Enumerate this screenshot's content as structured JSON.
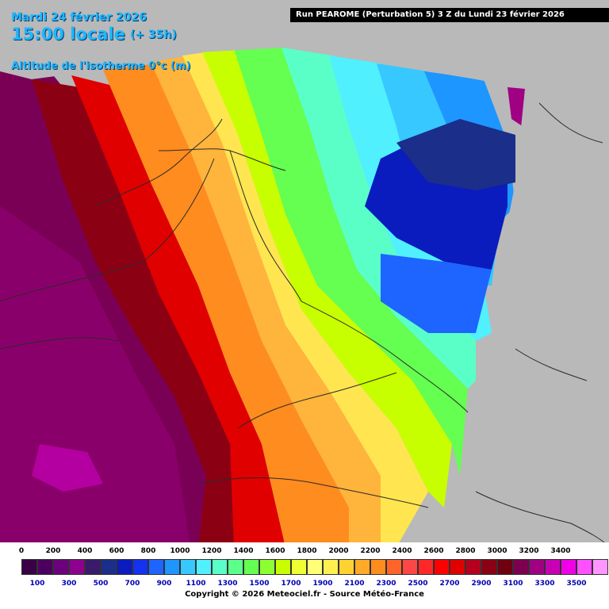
{
  "header": {
    "date": "Mardi 24 février 2026",
    "time": "15:00 locale",
    "offset": "(+ 35h)",
    "parameter": "Altitude de l'isotherme 0°c (m)",
    "run": "Run PEAROME (Perturbation 5) 3 Z du Lundi 23 février 2026"
  },
  "legend": {
    "top_labels": [
      "0",
      "200",
      "400",
      "600",
      "800",
      "1000",
      "1200",
      "1400",
      "1600",
      "1800",
      "2000",
      "2200",
      "2400",
      "2600",
      "2800",
      "3000",
      "3200",
      "3400"
    ],
    "bottom_labels": [
      "100",
      "300",
      "500",
      "700",
      "900",
      "1100",
      "1300",
      "1500",
      "1700",
      "1900",
      "2100",
      "2300",
      "2500",
      "2700",
      "2900",
      "3100",
      "3300",
      "3500"
    ],
    "colors": [
      "#3a0046",
      "#4b0060",
      "#6d007d",
      "#8e008f",
      "#3a1a6a",
      "#1a2e8a",
      "#0a1cbe",
      "#1432f0",
      "#1e64ff",
      "#1e96ff",
      "#37c8ff",
      "#50f0ff",
      "#5affc8",
      "#5aff8c",
      "#64ff50",
      "#8cff32",
      "#c8ff00",
      "#f0ff32",
      "#ffff78",
      "#fff050",
      "#ffd232",
      "#ffaa28",
      "#ff8c1e",
      "#ff6428",
      "#ff4646",
      "#ff2828",
      "#ff0000",
      "#e00000",
      "#b4001e",
      "#8c0014",
      "#6e0010",
      "#7d0050",
      "#a00082",
      "#c800b4",
      "#f000e6",
      "#ff50ff",
      "#ff96ff"
    ],
    "copyright": "Copyright © 2026 Meteociel.fr - Source Météo-France"
  },
  "map_colors": {
    "outside": "#b9b9b9",
    "deep_purple": "#7a0056",
    "magenta": "#a0007a",
    "dark_red": "#8c0014",
    "red": "#e00000",
    "orange": "#ff8c1e",
    "light_orange": "#ffb43c",
    "yellow": "#ffe650",
    "light_yellow": "#fff08c",
    "lime": "#c8ff00",
    "green": "#64ff50",
    "teal_green": "#5affc8",
    "cyan": "#50f0ff",
    "sky": "#37c8ff",
    "blue": "#1e96ff",
    "deep_blue": "#0a1cbe",
    "navy": "#1a2e8a",
    "border_line": "#2a2a2a"
  }
}
